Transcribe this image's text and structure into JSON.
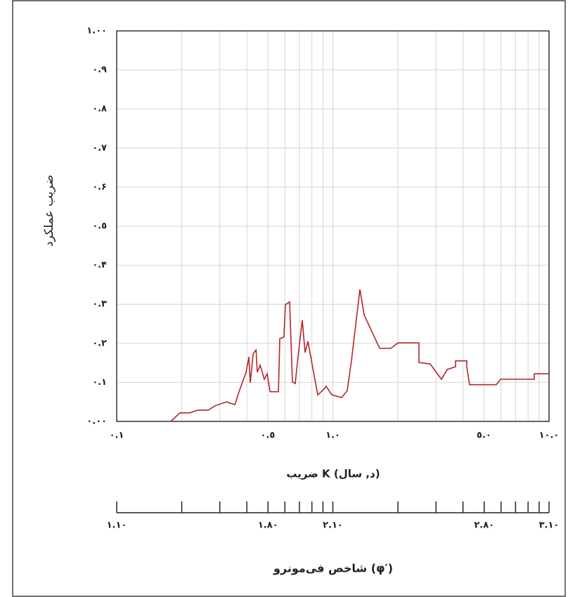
{
  "chart_data": {
    "type": "line",
    "ylabel": "ضریب عملکرد",
    "xlabel": "ضریب K (د, سال)",
    "x2label": "شاخص فی‌مونرو (φ′)",
    "xscale": "log",
    "grid": true,
    "xlim": [
      0.1,
      10
    ],
    "ylim": [
      0,
      1
    ],
    "x2lim": [
      1.1,
      3.1
    ],
    "xticks": [
      {
        "value": 0.1,
        "label": "۰.۱"
      },
      {
        "value": 0.5,
        "label": "۰.٥"
      },
      {
        "value": 1,
        "label": "۱.۰"
      },
      {
        "value": 5,
        "label": "٥.۰"
      },
      {
        "value": 10,
        "label": "۱۰.۰"
      }
    ],
    "xminorticks": [
      0.2,
      0.3,
      0.4,
      0.6,
      0.7,
      0.8,
      0.9,
      2,
      3,
      4,
      6,
      7,
      8,
      9
    ],
    "yticks": [
      {
        "value": 0,
        "label": "۰.۰۰"
      },
      {
        "value": 0.1,
        "label": "۰.۱"
      },
      {
        "value": 0.2,
        "label": "۰.۲"
      },
      {
        "value": 0.3,
        "label": "۰.۳"
      },
      {
        "value": 0.4,
        "label": "۰.۴"
      },
      {
        "value": 0.5,
        "label": "۰.٥"
      },
      {
        "value": 0.6,
        "label": "۰.۶"
      },
      {
        "value": 0.7,
        "label": "۰.۷"
      },
      {
        "value": 0.8,
        "label": "۰.۸"
      },
      {
        "value": 0.9,
        "label": "۰.۹"
      },
      {
        "value": 1,
        "label": "۱.۰۰"
      }
    ],
    "x2ticks": [
      {
        "value": 1.1,
        "label": "۱.۱۰"
      },
      {
        "value": 1.8,
        "label": "۱.۸۰"
      },
      {
        "value": 2.1,
        "label": "۲.۱۰"
      },
      {
        "value": 2.8,
        "label": "۲.۸۰"
      },
      {
        "value": 3.1,
        "label": "۳.۱۰"
      }
    ],
    "series": [
      {
        "color": "#b3262b",
        "x": [
          0.178,
          0.196,
          0.218,
          0.238,
          0.265,
          0.285,
          0.322,
          0.352,
          0.368,
          0.397,
          0.409,
          0.415,
          0.428,
          0.441,
          0.447,
          0.461,
          0.482,
          0.497,
          0.512,
          0.56,
          0.568,
          0.594,
          0.603,
          0.631,
          0.65,
          0.67,
          0.69,
          0.722,
          0.744,
          0.767,
          0.814,
          0.851,
          0.904,
          0.931,
          0.989,
          1.098,
          1.166,
          1.22,
          1.334,
          1.395,
          1.504,
          1.646,
          1.855,
          2.0,
          2.503,
          2.503,
          2.821,
          3.18,
          3.378,
          3.694,
          3.694,
          4.165,
          4.165,
          4.291,
          5.703,
          5.965,
          8.545,
          8.545,
          10
        ],
        "values": [
          0,
          0.022,
          0.022,
          0.029,
          0.029,
          0.04,
          0.05,
          0.043,
          0.076,
          0.126,
          0.165,
          0.099,
          0.174,
          0.183,
          0.126,
          0.144,
          0.108,
          0.122,
          0.076,
          0.076,
          0.212,
          0.216,
          0.299,
          0.306,
          0.101,
          0.097,
          0.165,
          0.259,
          0.176,
          0.205,
          0.126,
          0.068,
          0.081,
          0.09,
          0.068,
          0.061,
          0.079,
          0.158,
          0.338,
          0.273,
          0.234,
          0.187,
          0.187,
          0.201,
          0.201,
          0.151,
          0.147,
          0.108,
          0.133,
          0.14,
          0.155,
          0.155,
          0.14,
          0.094,
          0.094,
          0.108,
          0.108,
          0.122,
          0.122
        ]
      }
    ]
  }
}
